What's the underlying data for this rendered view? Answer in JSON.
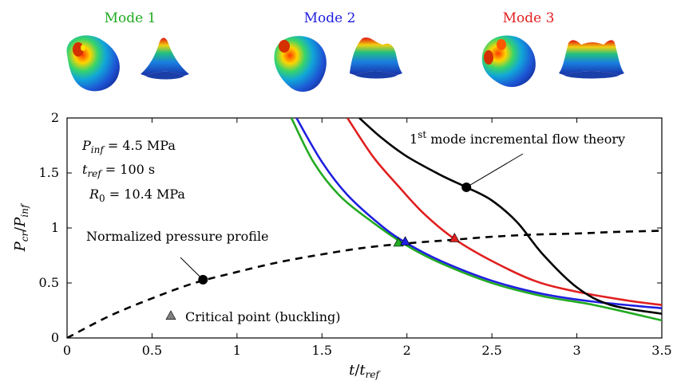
{
  "modes": [
    {
      "label": "Mode 1",
      "color": "#22aa22"
    },
    {
      "label": "Mode 2",
      "color": "#1f1fe0"
    },
    {
      "label": "Mode 3",
      "color": "#e02020"
    }
  ],
  "annotations": {
    "p_inf": {
      "sym": "P",
      "sub": "inf",
      "rest": " = 4.5 MPa"
    },
    "t_ref": {
      "sym": "t",
      "sub": "ref",
      "rest": " = 100 s"
    },
    "r0": {
      "sym": "R",
      "sub": "0",
      "rest": " = 10.4 MPa"
    },
    "flow_theory": {
      "pre": "1",
      "sup": "st",
      "rest": " mode incremental flow theory"
    },
    "pressure_profile": "Normalized pressure profile",
    "critical_point": "Critical point (buckling)"
  },
  "chart_data": {
    "type": "line",
    "xlabel": {
      "sym": "t",
      "slash": "/",
      "sym2": "t",
      "sub2": "ref"
    },
    "ylabel": {
      "sym": "P",
      "sub": "cr",
      "slash": "/",
      "sym2": "P",
      "sub2": "inf"
    },
    "xlim": [
      0,
      3.5
    ],
    "ylim": [
      0,
      2
    ],
    "xticks": [
      0,
      0.5,
      1,
      1.5,
      2,
      2.5,
      3,
      3.5
    ],
    "xtick_labels": [
      "0",
      "0.5",
      "1",
      "1.5",
      "2",
      "2.5",
      "3",
      "3.5"
    ],
    "yticks": [
      0,
      0.5,
      1,
      1.5,
      2
    ],
    "ytick_labels": [
      "0",
      "0.5",
      "1",
      "1.5",
      "2"
    ],
    "series": [
      {
        "key": "mode1",
        "color": "#22aa22",
        "style": "solid",
        "x": [
          1.32,
          1.45,
          1.6,
          1.8,
          2.0,
          2.2,
          2.5,
          2.8,
          3.1,
          3.5
        ],
        "y": [
          2.0,
          1.6,
          1.3,
          1.05,
          0.84,
          0.68,
          0.5,
          0.38,
          0.3,
          0.16
        ]
      },
      {
        "key": "mode2",
        "color": "#1f1fe0",
        "style": "solid",
        "x": [
          1.35,
          1.5,
          1.65,
          1.85,
          2.0,
          2.2,
          2.5,
          2.8,
          3.1,
          3.5
        ],
        "y": [
          2.0,
          1.6,
          1.3,
          1.02,
          0.86,
          0.7,
          0.52,
          0.4,
          0.33,
          0.27
        ]
      },
      {
        "key": "mode3",
        "color": "#e02020",
        "style": "solid",
        "x": [
          1.65,
          1.8,
          1.95,
          2.1,
          2.28,
          2.5,
          2.75,
          3.0,
          3.3,
          3.5
        ],
        "y": [
          2.0,
          1.65,
          1.38,
          1.13,
          0.9,
          0.7,
          0.52,
          0.42,
          0.34,
          0.3
        ]
      },
      {
        "key": "flow_theory",
        "color": "#000000",
        "style": "solid",
        "x": [
          1.72,
          1.85,
          2.0,
          2.2,
          2.35,
          2.5,
          2.65,
          2.8,
          3.0,
          3.2,
          3.5
        ],
        "y": [
          2.0,
          1.82,
          1.65,
          1.48,
          1.37,
          1.25,
          1.05,
          0.76,
          0.46,
          0.3,
          0.22
        ]
      },
      {
        "key": "pressure_profile",
        "color": "#000000",
        "style": "dashed",
        "x": [
          0,
          0.25,
          0.5,
          0.75,
          1.0,
          1.25,
          1.5,
          1.75,
          2.0,
          2.25,
          2.5,
          2.75,
          3.0,
          3.25,
          3.5
        ],
        "y": [
          0.0,
          0.2,
          0.36,
          0.5,
          0.6,
          0.69,
          0.76,
          0.82,
          0.86,
          0.89,
          0.92,
          0.94,
          0.95,
          0.965,
          0.975
        ]
      }
    ],
    "critical_points": [
      {
        "mode": "mode1",
        "x": 1.95,
        "y": 0.86,
        "color": "#22aa22"
      },
      {
        "mode": "mode2",
        "x": 1.99,
        "y": 0.87,
        "color": "#1f1fe0"
      },
      {
        "mode": "mode3",
        "x": 2.28,
        "y": 0.9,
        "color": "#e02020"
      }
    ],
    "callout_points": [
      {
        "target": "flow_theory",
        "x": 2.35,
        "y": 1.37
      },
      {
        "target": "pressure_profile",
        "x": 0.8,
        "y": 0.53
      }
    ],
    "legend_marker_color": "#808080"
  }
}
